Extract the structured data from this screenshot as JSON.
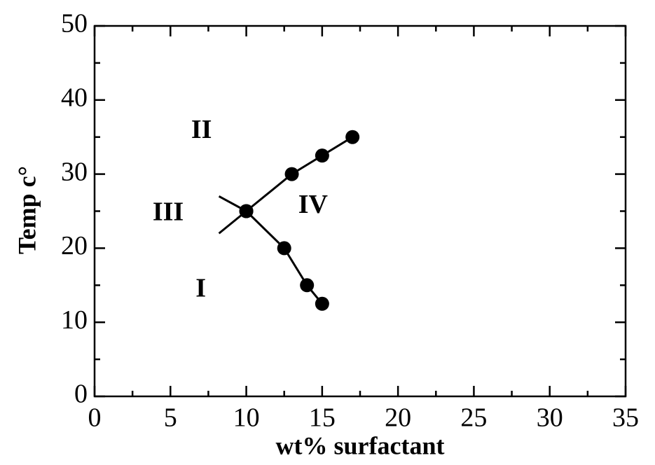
{
  "chart_data": {
    "type": "line",
    "x_label": "wt% surfactant",
    "y_label": "Temp c°",
    "xlim": [
      0,
      35
    ],
    "xticks": [
      0,
      5,
      10,
      15,
      20,
      25,
      30,
      35
    ],
    "ylim": [
      0,
      50
    ],
    "yticks": [
      0,
      10,
      20,
      30,
      40,
      50
    ],
    "grid": false,
    "color": "#000000",
    "series": [
      {
        "x": [
          10,
          13,
          15,
          17
        ],
        "values": [
          25,
          30,
          32.5,
          35
        ],
        "markers": true
      },
      {
        "x": [
          10,
          12.5,
          14,
          15
        ],
        "values": [
          25,
          20,
          15,
          12.5
        ],
        "markers": true
      },
      {
        "x": [
          8.2,
          10
        ],
        "values": [
          22,
          25
        ],
        "markers": false
      },
      {
        "x": [
          8.2,
          10
        ],
        "values": [
          27,
          25
        ],
        "markers": false
      }
    ],
    "annotations": [
      {
        "text": "II",
        "x": 7.05,
        "y": 35.7
      },
      {
        "text": "III",
        "x": 4.85,
        "y": 24.6
      },
      {
        "text": "IV",
        "x": 14.4,
        "y": 25.6
      },
      {
        "text": "I",
        "x": 7.0,
        "y": 14.3
      }
    ]
  }
}
